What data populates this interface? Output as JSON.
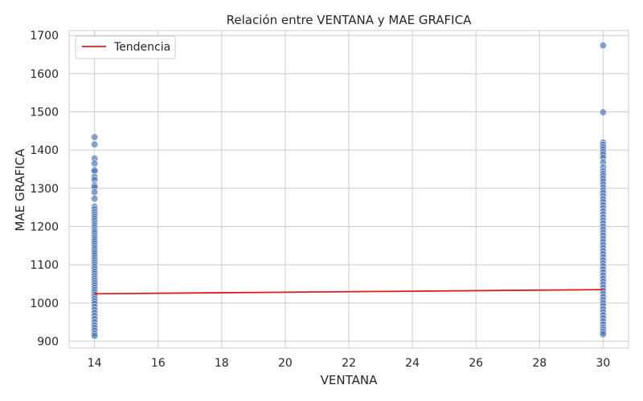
{
  "chart_data": {
    "type": "scatter",
    "title": "Relación entre VENTANA y MAE GRAFICA",
    "xlabel": "VENTANA",
    "ylabel": "MAE GRAFICA",
    "xlim": [
      13.2,
      30.8
    ],
    "ylim": [
      882,
      1713
    ],
    "xticks": [
      14,
      16,
      18,
      20,
      22,
      24,
      26,
      28,
      30
    ],
    "yticks": [
      900,
      1000,
      1100,
      1200,
      1300,
      1400,
      1500,
      1600,
      1700
    ],
    "grid": true,
    "legend": {
      "placement": "top-left",
      "entries": [
        "Tendencia"
      ]
    },
    "colors": {
      "points": "#4c72b0",
      "trend": "#e41a1c",
      "grid": "#cccccc",
      "axes": "#cccccc"
    },
    "series": [
      {
        "kind": "scatter",
        "x": 14,
        "y": [
          1434,
          1415,
          1378,
          1365,
          1348,
          1345,
          1330,
          1322,
          1308,
          1303,
          1290,
          1273,
          1252,
          1245,
          1238,
          1232,
          1226,
          1220,
          1214,
          1208,
          1203,
          1198,
          1192,
          1187,
          1182,
          1176,
          1171,
          1166,
          1161,
          1156,
          1150,
          1145,
          1140,
          1135,
          1130,
          1124,
          1118,
          1112,
          1106,
          1100,
          1094,
          1088,
          1082,
          1076,
          1070,
          1064,
          1058,
          1052,
          1046,
          1040,
          1034,
          1028,
          1022,
          1016,
          1010,
          1004,
          998,
          990,
          982,
          974,
          966,
          958,
          950,
          942,
          935,
          928,
          920,
          914
        ]
      },
      {
        "kind": "scatter",
        "x": 30,
        "y": [
          1674,
          1499,
          1420,
          1414,
          1408,
          1402,
          1395,
          1388,
          1380,
          1368,
          1355,
          1345,
          1338,
          1332,
          1325,
          1318,
          1310,
          1302,
          1295,
          1288,
          1280,
          1272,
          1264,
          1256,
          1248,
          1240,
          1232,
          1224,
          1216,
          1208,
          1200,
          1192,
          1184,
          1176,
          1168,
          1160,
          1152,
          1144,
          1136,
          1128,
          1120,
          1112,
          1104,
          1096,
          1088,
          1080,
          1072,
          1064,
          1056,
          1048,
          1040,
          1032,
          1024,
          1016,
          1008,
          1000,
          992,
          984,
          976,
          968,
          960,
          952,
          944,
          936,
          930,
          924,
          918
        ]
      },
      {
        "kind": "line",
        "name": "Tendencia",
        "x": [
          14,
          30
        ],
        "y": [
          1024,
          1035
        ]
      }
    ]
  }
}
